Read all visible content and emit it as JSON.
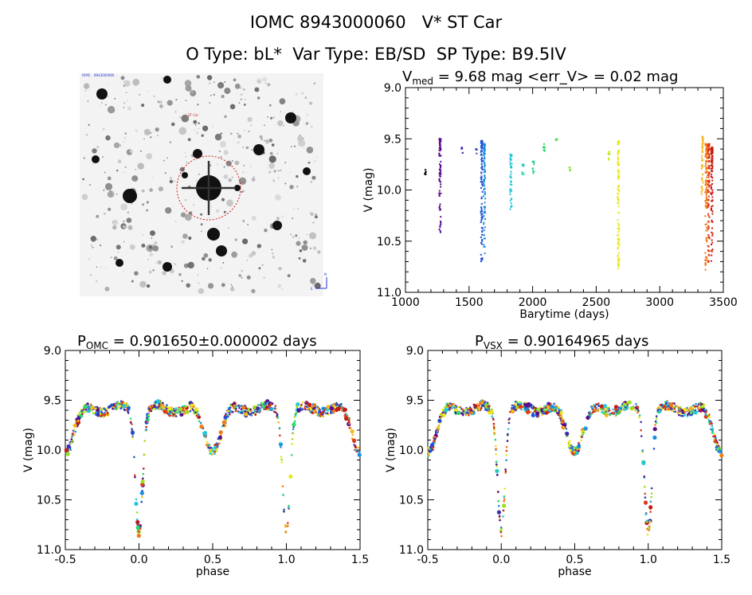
{
  "header": {
    "line1": "IOMC 8943000060   V* ST Car",
    "line2": "O Type: bL*  Var Type: EB/SD  SP Type: B9.5IV"
  },
  "image_panel": {
    "corner_labels": [
      "IOMC",
      "8943000060",
      "ST Car",
      "N",
      "E"
    ],
    "circle_color": "#d41a1a"
  },
  "colors": [
    "#5a0a8a",
    "#3a2fb0",
    "#1e4fd8",
    "#1a8fe0",
    "#22c8d8",
    "#2fd86a",
    "#9be020",
    "#e8e81a",
    "#f5b81a",
    "#f07a18",
    "#e03a14",
    "#c81a10"
  ],
  "chart_data": [
    {
      "type": "scatter",
      "title_main": "V",
      "title_sub": "med",
      "title_rest": " = 9.68 mag <err_V> = 0.02 mag",
      "xlabel": "Barytime (days)",
      "ylabel": "V (mag)",
      "xlim": [
        1000,
        3500
      ],
      "ylim": [
        11.0,
        9.0
      ],
      "xticks": [
        1000,
        1500,
        2000,
        2500,
        3000,
        3500
      ],
      "yticks": [
        "9.0",
        "9.5",
        "10.0",
        "10.5",
        "11.0"
      ],
      "groups": [
        {
          "x": 1155,
          "vmin": 9.8,
          "vmax": 9.85,
          "color": "#000000"
        },
        {
          "x": 1272,
          "vmin": 9.5,
          "vmax": 10.45,
          "color": "#5a0a8a"
        },
        {
          "x": 1445,
          "vmin": 9.58,
          "vmax": 9.65,
          "color": "#3a2fb0"
        },
        {
          "x": 1555,
          "vmin": 9.6,
          "vmax": 9.65,
          "color": "#2a3fc8"
        },
        {
          "x": 1600,
          "vmin": 9.52,
          "vmax": 10.72,
          "color": "#1e4fd8"
        },
        {
          "x": 1620,
          "vmin": 9.55,
          "vmax": 10.65,
          "color": "#1a8fe0"
        },
        {
          "x": 1830,
          "vmin": 9.65,
          "vmax": 10.2,
          "color": "#22c8d8"
        },
        {
          "x": 1925,
          "vmin": 9.75,
          "vmax": 9.85,
          "color": "#22d0b0"
        },
        {
          "x": 2005,
          "vmin": 9.72,
          "vmax": 9.85,
          "color": "#28d48a"
        },
        {
          "x": 2090,
          "vmin": 9.55,
          "vmax": 9.65,
          "color": "#2fd86a"
        },
        {
          "x": 2185,
          "vmin": 9.5,
          "vmax": 9.55,
          "color": "#4ee040"
        },
        {
          "x": 2290,
          "vmin": 9.78,
          "vmax": 9.85,
          "color": "#7be030"
        },
        {
          "x": 2600,
          "vmin": 9.62,
          "vmax": 9.72,
          "color": "#c8e820"
        },
        {
          "x": 2675,
          "vmin": 9.52,
          "vmax": 10.78,
          "color": "#e8e81a"
        },
        {
          "x": 3335,
          "vmin": 9.48,
          "vmax": 10.05,
          "color": "#f5b81a"
        },
        {
          "x": 3365,
          "vmin": 9.55,
          "vmax": 10.78,
          "color": "#f07a18"
        },
        {
          "x": 3385,
          "vmin": 9.55,
          "vmax": 10.75,
          "color": "#e03a14"
        },
        {
          "x": 3410,
          "vmin": 9.58,
          "vmax": 10.7,
          "color": "#c81a10"
        }
      ]
    },
    {
      "type": "scatter",
      "title_main": "P",
      "title_sub": "OMC",
      "title_rest": " = 0.901650±0.000002 days",
      "xlabel": "phase",
      "ylabel": "V (mag)",
      "xlim": [
        -0.5,
        1.5
      ],
      "ylim": [
        11.0,
        9.0
      ],
      "xticks": [
        "-0.5",
        "0.0",
        "0.5",
        "1.0",
        "1.5"
      ],
      "yticks": [
        "9.0",
        "9.5",
        "10.0",
        "10.5",
        "11.0"
      ],
      "curve": {
        "max_mag": 9.55,
        "primary_min": 10.75,
        "secondary_min": 9.95
      }
    },
    {
      "type": "scatter",
      "title_main": "P",
      "title_sub": "VSX",
      "title_rest": " = 0.90164965 days",
      "xlabel": "phase",
      "ylabel": "V (mag)",
      "xlim": [
        -0.5,
        1.5
      ],
      "ylim": [
        11.0,
        9.0
      ],
      "xticks": [
        "-0.5",
        "0.0",
        "0.5",
        "1.0",
        "1.5"
      ],
      "yticks": [
        "9.0",
        "9.5",
        "10.0",
        "10.5",
        "11.0"
      ],
      "curve": {
        "max_mag": 9.55,
        "primary_min": 10.75,
        "secondary_min": 9.95
      }
    }
  ]
}
